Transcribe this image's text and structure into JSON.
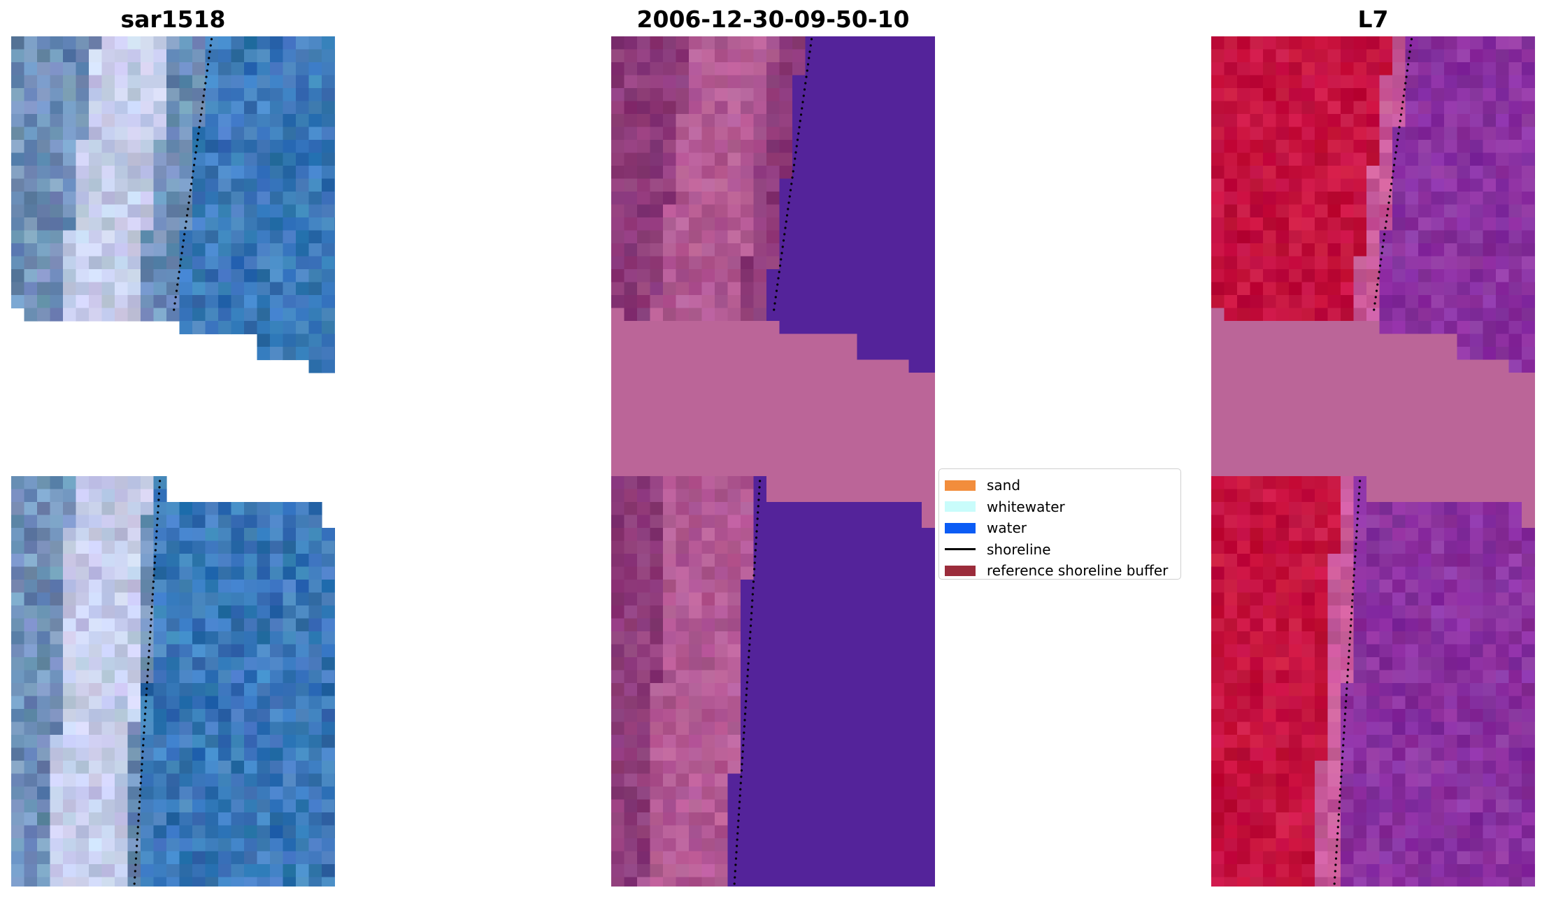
{
  "titles": {
    "left": "sar1518",
    "middle": "2006-12-30-09-50-10",
    "right": "L7"
  },
  "colors": {
    "rgb_sand": "#c6cdea",
    "rgb_water": "#3a78b8",
    "rgb_mixed": "#6e8fb7",
    "class_land": "#8c3a78",
    "class_land_light": "#b35a94",
    "class_water": "#54239a",
    "class_nodata": "#bb6598",
    "mndwi_land": "#c5123f",
    "mndwi_water": "#8a31a0",
    "mndwi_nodata": "#bb6598",
    "shoreline": "#000000"
  },
  "legend": {
    "items": [
      {
        "label": "sand",
        "color": "#f28d3c",
        "kind": "patch"
      },
      {
        "label": "whitewater",
        "color": "#c9fcfb",
        "kind": "patch"
      },
      {
        "label": "water",
        "color": "#0b5cf5",
        "kind": "patch"
      },
      {
        "label": "shoreline",
        "color": "#000000",
        "kind": "line"
      },
      {
        "label": "reference shoreline buffer",
        "color": "#9b2c3b",
        "kind": "patch"
      }
    ]
  }
}
